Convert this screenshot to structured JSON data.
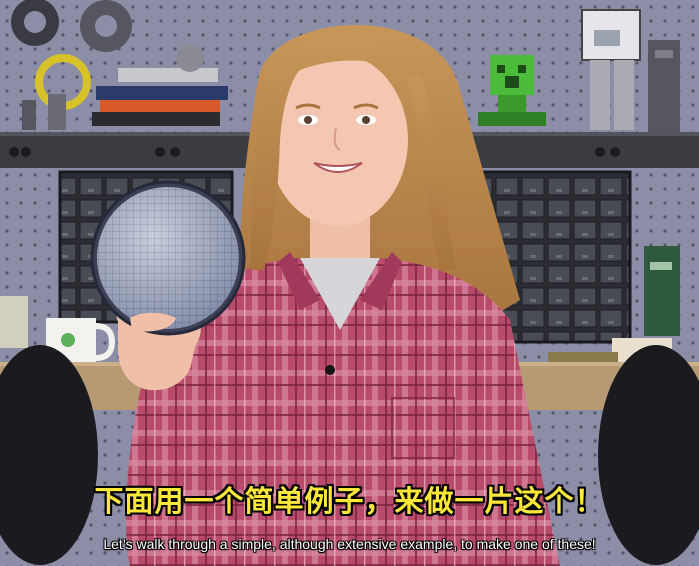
{
  "video": {
    "subtitles": {
      "chinese": "下面用一个简单例子，来做一片这个！",
      "english": "Let’s walk through a simple, although extensive example, to make one of these!"
    }
  },
  "colors": {
    "pegboard": "#8c8ea8",
    "shelf": "#3b3c42",
    "shirt": "#b84a6a",
    "hair": "#c9965a",
    "wafer": "#a9b2c9",
    "subtitle_cn": "#ffe83a"
  }
}
